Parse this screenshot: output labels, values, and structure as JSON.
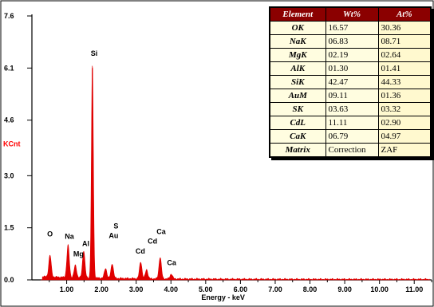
{
  "chart_data": {
    "type": "line",
    "xlabel": "Energy - keV",
    "ylabel": "KCnt",
    "xlim": [
      0.0,
      11.5
    ],
    "ylim": [
      0.0,
      7.6
    ],
    "x_ticks": [
      "1.00",
      "2.00",
      "3.00",
      "4.00",
      "5.00",
      "6.00",
      "7.00",
      "8.00",
      "9.00",
      "10.00",
      "11.00"
    ],
    "y_ticks": [
      "0.0",
      "1.5",
      "3.0",
      "4.6",
      "6.1",
      "7.6"
    ],
    "series_color": "#e00000",
    "peaks": [
      {
        "x": 0.52,
        "y": 0.62
      },
      {
        "x": 1.04,
        "y": 0.92
      },
      {
        "x": 1.25,
        "y": 0.35
      },
      {
        "x": 1.49,
        "y": 0.78
      },
      {
        "x": 1.74,
        "y": 6.1
      },
      {
        "x": 2.12,
        "y": 0.28
      },
      {
        "x": 2.31,
        "y": 0.42
      },
      {
        "x": 3.13,
        "y": 0.48
      },
      {
        "x": 3.3,
        "y": 0.26
      },
      {
        "x": 3.69,
        "y": 0.62
      },
      {
        "x": 4.01,
        "y": 0.14
      }
    ],
    "peak_labels": [
      {
        "text": "O",
        "x": 0.52,
        "y": 1.25
      },
      {
        "text": "Na",
        "x": 1.08,
        "y": 1.18
      },
      {
        "text": "Mg",
        "x": 1.34,
        "y": 0.68
      },
      {
        "text": "Al",
        "x": 1.55,
        "y": 0.98
      },
      {
        "text": "Si",
        "x": 1.79,
        "y": 6.45
      },
      {
        "text": "S",
        "x": 2.42,
        "y": 1.48
      },
      {
        "text": "Au",
        "x": 2.35,
        "y": 1.2
      },
      {
        "text": "Cd",
        "x": 3.12,
        "y": 0.76
      },
      {
        "text": "Cd",
        "x": 3.47,
        "y": 1.05
      },
      {
        "text": "Ca",
        "x": 3.72,
        "y": 1.32
      },
      {
        "text": "Ca",
        "x": 4.02,
        "y": 0.43
      }
    ]
  },
  "table": {
    "headers": [
      "Element",
      "Wt%",
      "At%"
    ],
    "rows": [
      [
        "OK",
        "16.57",
        "30.36"
      ],
      [
        "NaK",
        "06.83",
        "08.71"
      ],
      [
        "MgK",
        "02.19",
        "02.64"
      ],
      [
        "AlK",
        "01.30",
        "01.41"
      ],
      [
        "SiK",
        "42.47",
        "44.33"
      ],
      [
        "AuM",
        "09.11",
        "01.36"
      ],
      [
        "SK",
        "03.63",
        "03.32"
      ],
      [
        "CdL",
        "11.11",
        "02.90"
      ],
      [
        "CaK",
        "06.79",
        "04.97"
      ],
      [
        "Matrix",
        "Correction",
        "ZAF"
      ]
    ]
  }
}
